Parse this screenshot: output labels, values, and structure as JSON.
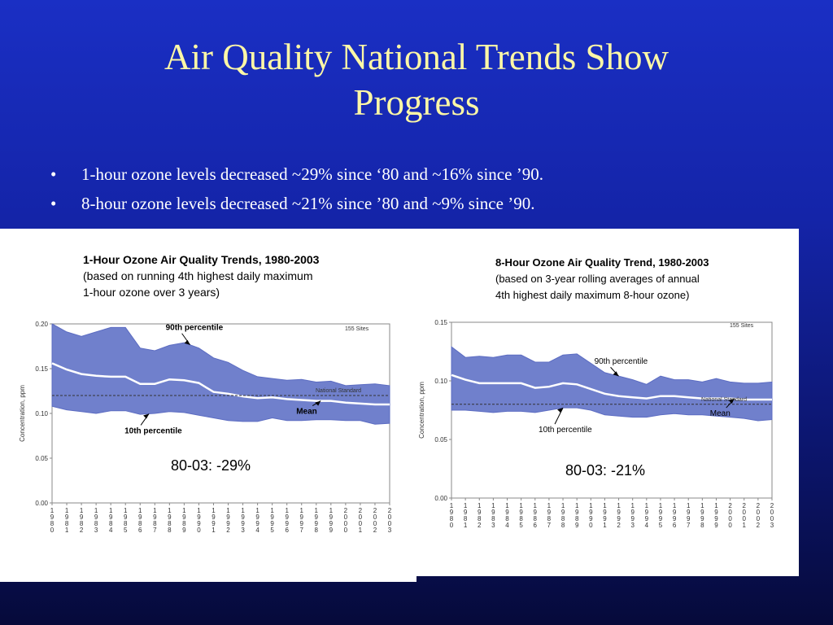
{
  "slide": {
    "title_line1": "Air Quality National Trends Show",
    "title_line2": "Progress",
    "bullets": [
      "1-hour ozone levels decreased ~29% since ‘80 and ~16% since ’90.",
      "8-hour ozone levels decreased ~21% since ’80 and ~9% since ’90."
    ]
  },
  "colors": {
    "band": "#7080cc",
    "band_edge": "#5c6cc2",
    "mean_line": "#ffffff",
    "standard_line": "#333333",
    "title": "#fdf7a6"
  },
  "chart_data": [
    {
      "type": "area",
      "title_lines": [
        "1-Hour Ozone Air Quality Trends, 1980-2003",
        "(based on running 4th highest daily maximum",
        "1-hour ozone over 3 years)"
      ],
      "ylabel": "Concentration, ppm",
      "ylim": [
        0,
        0.2
      ],
      "yticks": [
        "0.20",
        "0.15",
        "0.10",
        "0.05",
        "0.00"
      ],
      "ytick_values": [
        0.2,
        0.15,
        0.1,
        0.05,
        0.0
      ],
      "x": [
        1980,
        1981,
        1982,
        1983,
        1984,
        1985,
        1986,
        1987,
        1988,
        1989,
        1990,
        1991,
        1992,
        1993,
        1994,
        1995,
        1996,
        1997,
        1998,
        1999,
        2000,
        2001,
        2002,
        2003
      ],
      "xtick_labels": [
        "1980",
        "1981",
        "1982",
        "1983",
        "1984",
        "1985",
        "1986",
        "1987",
        "1988",
        "1989",
        "1990",
        "1991",
        "1992",
        "1993",
        "1994",
        "1995",
        "1996",
        "1997",
        "1998",
        "1999",
        "2000",
        "2001",
        "2002",
        "2003"
      ],
      "series": [
        {
          "name": "90th percentile",
          "values": [
            0.2,
            0.191,
            0.186,
            0.191,
            0.196,
            0.196,
            0.173,
            0.17,
            0.176,
            0.179,
            0.173,
            0.162,
            0.157,
            0.148,
            0.141,
            0.139,
            0.137,
            0.138,
            0.135,
            0.136,
            0.131,
            0.132,
            0.133,
            0.131
          ]
        },
        {
          "name": "Mean",
          "values": [
            0.156,
            0.149,
            0.144,
            0.142,
            0.141,
            0.141,
            0.133,
            0.133,
            0.138,
            0.137,
            0.134,
            0.124,
            0.122,
            0.119,
            0.117,
            0.118,
            0.116,
            0.115,
            0.114,
            0.114,
            0.112,
            0.111,
            0.11,
            0.11
          ]
        },
        {
          "name": "10th percentile",
          "values": [
            0.108,
            0.104,
            0.102,
            0.1,
            0.103,
            0.103,
            0.099,
            0.1,
            0.102,
            0.101,
            0.098,
            0.095,
            0.092,
            0.091,
            0.091,
            0.095,
            0.092,
            0.092,
            0.093,
            0.093,
            0.092,
            0.092,
            0.088,
            0.089
          ]
        }
      ],
      "reference_line": {
        "label": "National Standard",
        "value": 0.12
      },
      "sites_label": "155 Sites",
      "annotation": "80-03: -29%"
    },
    {
      "type": "area",
      "title_lines": [
        "8-Hour Ozone Air Quality Trend, 1980-2003",
        "(based on 3-year rolling averages of annual",
        "4th highest daily maximum 8-hour ozone)"
      ],
      "ylabel": "Concentration, ppm",
      "ylim": [
        0,
        0.15
      ],
      "yticks": [
        "0.15",
        "0.10",
        "0.05",
        "0.00"
      ],
      "ytick_values": [
        0.15,
        0.1,
        0.05,
        0.0
      ],
      "x": [
        1980,
        1981,
        1982,
        1983,
        1984,
        1985,
        1986,
        1987,
        1988,
        1989,
        1990,
        1991,
        1992,
        1993,
        1994,
        1995,
        1996,
        1997,
        1998,
        1999,
        2000,
        2001,
        2002,
        2003
      ],
      "xtick_labels": [
        "1980",
        "1981",
        "1982",
        "1983",
        "1984",
        "1985",
        "1986",
        "1987",
        "1988",
        "1989",
        "1990",
        "1991",
        "1992",
        "1993",
        "1994",
        "1995",
        "1996",
        "1997",
        "1998",
        "1999",
        "2000",
        "2001",
        "2002",
        "2003"
      ],
      "series": [
        {
          "name": "90th percentile",
          "values": [
            0.129,
            0.12,
            0.121,
            0.12,
            0.122,
            0.122,
            0.116,
            0.116,
            0.122,
            0.123,
            0.115,
            0.107,
            0.104,
            0.101,
            0.097,
            0.104,
            0.101,
            0.101,
            0.099,
            0.102,
            0.099,
            0.098,
            0.098,
            0.099
          ]
        },
        {
          "name": "Mean",
          "values": [
            0.105,
            0.101,
            0.098,
            0.098,
            0.098,
            0.098,
            0.094,
            0.095,
            0.098,
            0.097,
            0.093,
            0.089,
            0.087,
            0.086,
            0.085,
            0.087,
            0.087,
            0.086,
            0.085,
            0.085,
            0.085,
            0.084,
            0.084,
            0.084
          ]
        },
        {
          "name": "10th percentile",
          "values": [
            0.075,
            0.075,
            0.074,
            0.073,
            0.074,
            0.074,
            0.073,
            0.075,
            0.077,
            0.077,
            0.075,
            0.071,
            0.07,
            0.069,
            0.069,
            0.071,
            0.072,
            0.071,
            0.071,
            0.07,
            0.069,
            0.068,
            0.066,
            0.067
          ]
        }
      ],
      "reference_line": {
        "label": "National Standard",
        "value": 0.08
      },
      "sites_label": "155 Sites",
      "annotation": "80-03: -21%"
    }
  ]
}
